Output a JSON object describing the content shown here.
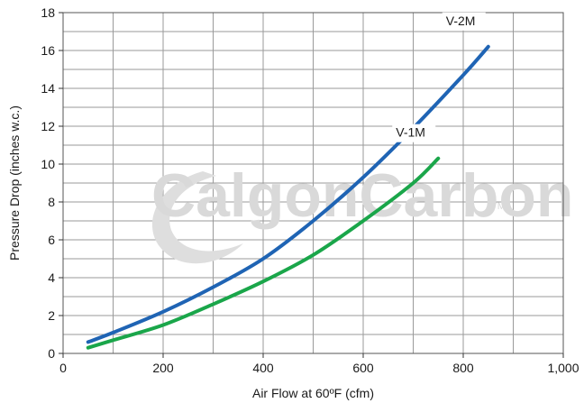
{
  "watermark": {
    "text": "CalgonCarbon",
    "tm": "TM"
  },
  "chart_data": {
    "type": "line",
    "title": "",
    "xlabel": "Air Flow at 60ºF (cfm)",
    "ylabel": "Pressure Drop (inches w.c.)",
    "xlim": [
      0,
      1000
    ],
    "ylim": [
      0,
      18
    ],
    "x_ticks": [
      0,
      200,
      400,
      600,
      800,
      1000
    ],
    "x_tick_labels": [
      "0",
      "200",
      "400",
      "600",
      "800",
      "1,000"
    ],
    "y_ticks": [
      0,
      2,
      4,
      6,
      8,
      10,
      12,
      14,
      16,
      18
    ],
    "y_tick_labels": [
      "0",
      "2",
      "4",
      "6",
      "8",
      "10",
      "12",
      "14",
      "16",
      "18"
    ],
    "x_grid_step": 100,
    "y_grid_step": 1,
    "grid": true,
    "legend": "inline labels at line ends",
    "series": [
      {
        "name": "V-2M",
        "color": "#1f64b4",
        "x": [
          50,
          100,
          200,
          300,
          400,
          500,
          600,
          700,
          800,
          850
        ],
        "y": [
          0.6,
          1.1,
          2.2,
          3.5,
          5.0,
          7.0,
          9.3,
          11.9,
          14.7,
          16.2
        ]
      },
      {
        "name": "V-1M",
        "color": "#1aa64a",
        "x": [
          50,
          100,
          200,
          300,
          400,
          500,
          600,
          700,
          750
        ],
        "y": [
          0.3,
          0.7,
          1.5,
          2.6,
          3.8,
          5.2,
          7.0,
          9.0,
          10.3
        ]
      }
    ]
  }
}
